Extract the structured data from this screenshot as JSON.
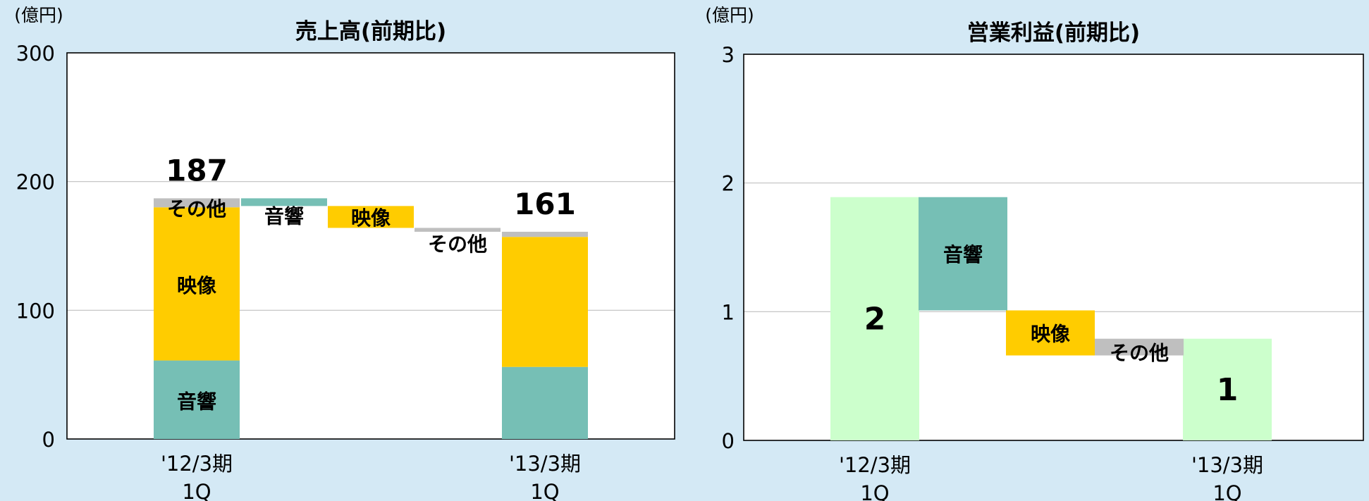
{
  "chart_data": [
    {
      "type": "waterfall",
      "title": "売上高(前期比)",
      "unit_label": "(億円)",
      "ylim": [
        0,
        300
      ],
      "yticks": [
        0,
        100,
        200,
        300
      ],
      "grid": true,
      "categories": [
        "'12/3期\n1Q",
        "",
        "",
        "",
        "'13/3期\n1Q"
      ],
      "start": {
        "category": "'12/3期\n1Q",
        "total": 187,
        "segments": [
          {
            "name": "音響",
            "value": 61
          },
          {
            "name": "映像",
            "value": 119
          },
          {
            "name": "その他",
            "value": 7
          }
        ]
      },
      "changes": [
        {
          "name": "音響",
          "from": 187,
          "to": 181
        },
        {
          "name": "映像",
          "from": 181,
          "to": 164
        },
        {
          "name": "その他",
          "from": 164,
          "to": 161
        }
      ],
      "end": {
        "category": "'13/3期\n1Q",
        "total": 161,
        "segments": [
          {
            "name": "音響",
            "value": 56
          },
          {
            "name": "映像",
            "value": 101
          },
          {
            "name": "その他",
            "value": 4
          }
        ]
      },
      "colors": {
        "音響": "#76bfb5",
        "映像": "#ffcc00",
        "その他": "#bfbfbf"
      }
    },
    {
      "type": "waterfall",
      "title": "営業利益(前期比)",
      "unit_label": "(億円)",
      "ylim": [
        0,
        3
      ],
      "yticks": [
        0,
        1,
        2,
        3
      ],
      "grid": true,
      "categories": [
        "'12/3期\n1Q",
        "",
        "",
        "",
        "'13/3期\n1Q"
      ],
      "start": {
        "category": "'12/3期\n1Q",
        "value": 1.89,
        "label": "2"
      },
      "changes": [
        {
          "name": "音響",
          "from": 1.89,
          "to": 1.01
        },
        {
          "name": "映像",
          "from": 1.01,
          "to": 0.66
        },
        {
          "name": "その他",
          "from": 0.79,
          "to": 0.66
        }
      ],
      "end": {
        "category": "'13/3期\n1Q",
        "value": 0.79,
        "label": "1"
      },
      "colors": {
        "total": "#ccffcc",
        "音響": "#76bfb5",
        "映像": "#ffcc00",
        "その他": "#bfbfbf"
      }
    }
  ]
}
